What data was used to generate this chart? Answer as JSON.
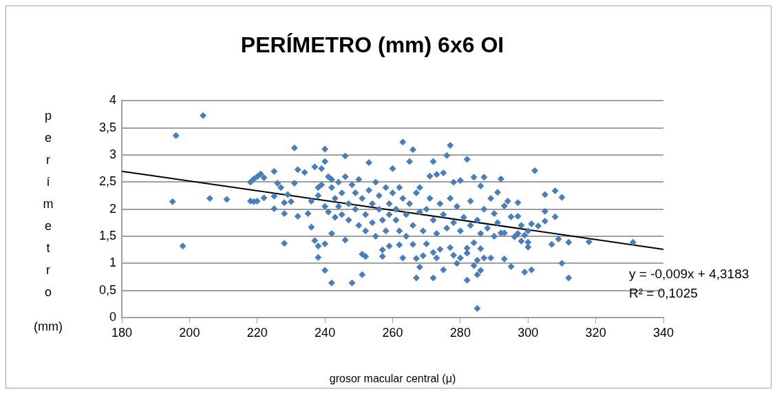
{
  "chart_data": {
    "type": "scatter",
    "title": "PERÍMETRO (mm) 6x6 OI",
    "xlabel": "grosor macular central (μ)",
    "ylabel": "perímetro (mm)",
    "xlim": [
      180,
      340
    ],
    "xticks": [
      180,
      200,
      220,
      240,
      260,
      280,
      300,
      320,
      340
    ],
    "ylim": [
      0,
      4
    ],
    "yticks": [
      0,
      {
        "value": 0.5,
        "label": "0,5"
      },
      1,
      {
        "value": 1.5,
        "label": "1,5"
      },
      2,
      {
        "value": 2.5,
        "label": "2,5"
      },
      3,
      {
        "value": 3.5,
        "label": "3,5"
      },
      4
    ],
    "grid": "y",
    "legend": false,
    "marker": "diamond",
    "annotations": [
      "y = -0,009x + 4,3183",
      "R² = 0,1025"
    ],
    "series": [
      {
        "type": "scatter",
        "color": "#4a7ebb",
        "x": [
          204,
          196,
          195,
          198,
          206,
          211,
          218,
          219,
          218,
          219,
          220,
          221,
          222,
          220,
          222,
          225,
          225,
          225,
          226,
          227,
          228,
          228,
          228,
          229,
          230,
          231,
          231,
          232,
          232,
          234,
          235,
          236,
          237,
          238,
          237,
          238,
          238,
          240,
          240,
          239,
          240,
          240,
          242,
          242,
          246,
          246,
          248,
          251,
          251,
          252,
          253,
          257,
          257,
          241,
          242,
          243,
          244,
          245,
          245,
          246,
          247,
          247,
          248,
          249,
          249,
          250,
          250,
          251,
          252,
          252,
          253,
          254,
          254,
          255,
          255,
          256,
          256,
          257,
          258,
          258,
          259,
          259,
          236,
          238,
          240,
          241,
          243,
          244,
          239,
          242,
          260,
          260,
          261,
          261,
          262,
          262,
          263,
          263,
          263,
          262,
          259,
          264,
          264,
          265,
          265,
          266,
          266,
          266,
          267,
          267,
          267,
          268,
          268,
          268,
          269,
          269,
          270,
          270,
          271,
          271,
          272,
          272,
          272,
          272,
          273,
          273,
          273,
          274,
          274,
          275,
          275,
          275,
          276,
          276,
          277,
          277,
          277,
          278,
          278,
          278,
          279,
          279,
          280,
          280,
          280,
          281,
          282,
          282,
          282,
          282,
          283,
          283,
          284,
          284,
          284,
          285,
          285,
          285,
          285,
          286,
          286,
          286,
          286,
          287,
          287,
          287,
          288,
          289,
          289,
          290,
          290,
          291,
          291,
          292,
          292,
          293,
          293,
          293,
          294,
          295,
          295,
          296,
          297,
          297,
          298,
          297,
          298,
          299,
          299,
          300,
          300,
          300,
          301,
          301,
          302,
          303,
          305,
          305,
          305,
          307,
          308,
          308,
          309,
          310,
          310,
          312,
          312,
          318,
          331
        ],
        "values": [
          3.73,
          3.36,
          2.14,
          1.32,
          2.2,
          2.18,
          2.15,
          2.14,
          2.5,
          2.56,
          2.6,
          2.65,
          2.58,
          2.15,
          2.21,
          2.24,
          2.01,
          2.7,
          2.48,
          2.4,
          2.12,
          1.92,
          1.37,
          2.27,
          2.14,
          3.13,
          2.48,
          2.73,
          1.87,
          2.68,
          1.92,
          1.67,
          2.78,
          2.4,
          1.42,
          1.32,
          1.11,
          3.11,
          2.88,
          2.75,
          1.36,
          0.87,
          1.55,
          0.64,
          2.98,
          1.43,
          0.64,
          0.79,
          1.17,
          1.13,
          2.86,
          1.13,
          1.25,
          2.6,
          2.4,
          2.2,
          2.5,
          1.9,
          2.3,
          2.6,
          2.1,
          1.8,
          2.45,
          2.0,
          2.3,
          1.7,
          2.55,
          2.2,
          1.9,
          1.6,
          2.35,
          2.1,
          1.75,
          2.5,
          1.5,
          2.0,
          2.25,
          1.8,
          2.4,
          1.6,
          2.1,
          1.9,
          2.15,
          2.25,
          2.05,
          1.95,
          1.85,
          2.05,
          2.45,
          2.55,
          2.75,
          2.3,
          1.8,
          2.0,
          1.6,
          2.4,
          2.2,
          3.24,
          1.1,
          1.34,
          1.32,
          1.9,
          1.5,
          2.88,
          2.1,
          3.1,
          1.35,
          1.7,
          2.3,
          0.73,
          1.09,
          2.4,
          0.93,
          1.95,
          1.14,
          1.6,
          2.0,
          1.36,
          2.61,
          2.2,
          2.88,
          1.8,
          0.73,
          1.2,
          2.64,
          1.1,
          1.55,
          1.26,
          2.1,
          2.67,
          0.88,
          1.9,
          2.99,
          1.65,
          3.18,
          1.29,
          2.2,
          2.5,
          1.15,
          1.75,
          1.0,
          2.05,
          2.53,
          1.1,
          1.6,
          1.85,
          2.92,
          1.19,
          0.69,
          1.28,
          1.7,
          2.15,
          2.59,
          1.38,
          0.96,
          1.06,
          0.79,
          0.17,
          1.8,
          2.43,
          0.87,
          1.27,
          1.55,
          2.59,
          1.1,
          2.0,
          1.65,
          1.1,
          2.2,
          1.92,
          1.5,
          2.31,
          1.75,
          2.56,
          1.56,
          1.56,
          2.06,
          1.08,
          2.15,
          1.86,
          0.94,
          1.49,
          2.12,
          1.87,
          1.7,
          1.55,
          1.41,
          1.52,
          0.84,
          1.6,
          1.39,
          1.3,
          1.73,
          0.88,
          2.71,
          1.69,
          2.27,
          1.96,
          1.78,
          1.35,
          2.34,
          1.86,
          1.45,
          2.22,
          1.0,
          1.39,
          0.73,
          1.4,
          1.39
        ]
      },
      {
        "type": "line",
        "color": "#000000",
        "marker": "none",
        "x": [
          180,
          340
        ],
        "values": [
          2.7,
          1.26
        ]
      }
    ]
  }
}
